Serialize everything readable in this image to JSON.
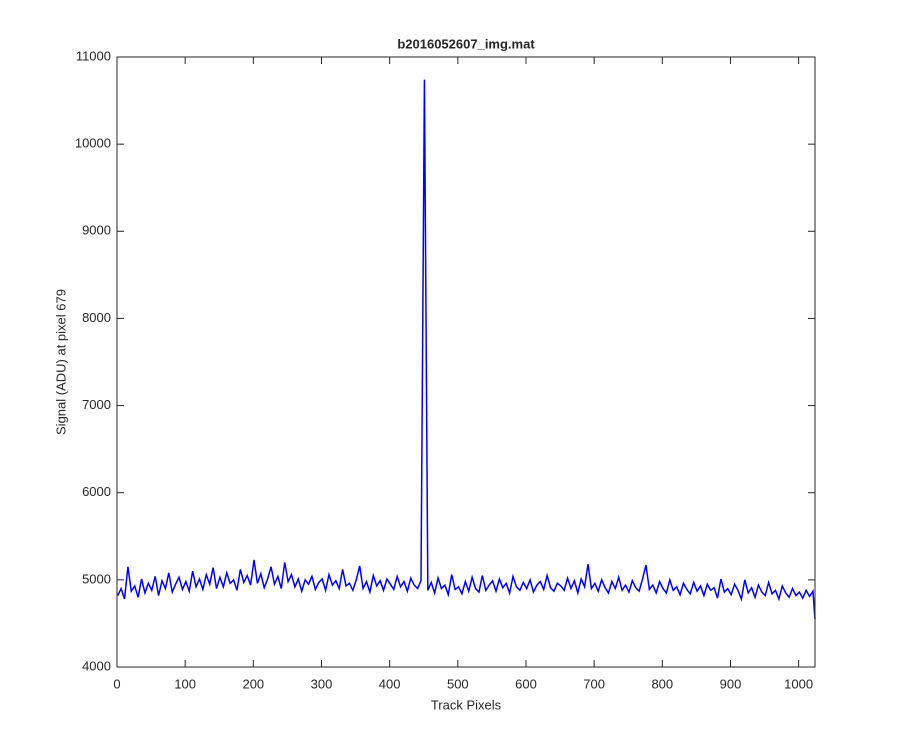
{
  "chart_data": {
    "type": "line",
    "title": "b2016052607_img.mat",
    "x_label": "Track Pixels",
    "y_label": "Signal (ADU) at pixel 679",
    "color": "#0000ff",
    "xlim": [
      0,
      1024
    ],
    "ylim": [
      4000,
      11000
    ],
    "xticks": [
      0,
      100,
      200,
      300,
      400,
      500,
      600,
      700,
      800,
      900,
      1000
    ],
    "yticks": [
      4000,
      5000,
      6000,
      7000,
      8000,
      9000,
      10000,
      11000
    ],
    "x": [
      1,
      6,
      11,
      16,
      21,
      26,
      31,
      36,
      41,
      46,
      51,
      56,
      61,
      66,
      71,
      76,
      81,
      86,
      91,
      96,
      101,
      106,
      111,
      116,
      121,
      126,
      131,
      136,
      141,
      146,
      151,
      156,
      161,
      166,
      171,
      176,
      181,
      186,
      191,
      196,
      201,
      206,
      211,
      216,
      221,
      226,
      231,
      236,
      241,
      246,
      251,
      256,
      261,
      266,
      271,
      276,
      281,
      286,
      291,
      296,
      301,
      306,
      311,
      316,
      321,
      326,
      331,
      336,
      341,
      346,
      351,
      356,
      361,
      366,
      371,
      376,
      381,
      386,
      391,
      396,
      401,
      406,
      411,
      416,
      421,
      426,
      431,
      436,
      441,
      446,
      451,
      456,
      461,
      466,
      471,
      476,
      481,
      486,
      491,
      496,
      501,
      506,
      511,
      516,
      521,
      526,
      531,
      536,
      541,
      546,
      551,
      556,
      561,
      566,
      571,
      576,
      581,
      586,
      591,
      596,
      601,
      606,
      611,
      616,
      621,
      626,
      631,
      636,
      641,
      646,
      651,
      656,
      661,
      666,
      671,
      676,
      681,
      686,
      691,
      696,
      701,
      706,
      711,
      716,
      721,
      726,
      731,
      736,
      741,
      746,
      751,
      756,
      761,
      766,
      771,
      776,
      781,
      786,
      791,
      796,
      801,
      806,
      811,
      816,
      821,
      826,
      831,
      836,
      841,
      846,
      851,
      856,
      861,
      866,
      871,
      876,
      881,
      886,
      891,
      896,
      901,
      906,
      911,
      916,
      921,
      926,
      931,
      936,
      941,
      946,
      951,
      956,
      961,
      966,
      971,
      976,
      981,
      986,
      991,
      996,
      1001,
      1006,
      1011,
      1016,
      1021,
      1024
    ],
    "values": [
      4820,
      4900,
      4780,
      5150,
      4870,
      4930,
      4800,
      5010,
      4850,
      4960,
      4880,
      5040,
      4820,
      4990,
      4900,
      5080,
      4860,
      4950,
      5030,
      4890,
      4980,
      4870,
      5100,
      4920,
      5010,
      4890,
      5060,
      4950,
      5140,
      4900,
      5030,
      4920,
      5080,
      4960,
      5000,
      4880,
      5120,
      4970,
      5050,
      4940,
      5230,
      4960,
      5070,
      4910,
      5010,
      5150,
      4950,
      5040,
      4900,
      5200,
      4980,
      5060,
      4920,
      5010,
      4870,
      5000,
      4950,
      5040,
      4890,
      4970,
      5010,
      4880,
      5060,
      4940,
      4990,
      4900,
      5120,
      4930,
      4960,
      4880,
      5000,
      5160,
      4900,
      4980,
      4860,
      5050,
      4930,
      4990,
      4880,
      5010,
      4950,
      4890,
      5040,
      4920,
      4980,
      4870,
      5020,
      4940,
      4900,
      4990,
      10740,
      4880,
      4970,
      4850,
      5020,
      4900,
      4940,
      4830,
      5060,
      4890,
      4920,
      4840,
      4980,
      4870,
      5030,
      4900,
      4860,
      5050,
      4880,
      4940,
      4990,
      4870,
      5010,
      4910,
      4960,
      4850,
      5040,
      4920,
      4880,
      4970,
      4900,
      5000,
      4860,
      4940,
      4980,
      4890,
      5050,
      4910,
      4870,
      4960,
      4930,
      4880,
      5020,
      4900,
      4990,
      4850,
      5010,
      4920,
      5180,
      4900,
      4960,
      4870,
      5000,
      4910,
      4850,
      4980,
      4900,
      5030,
      4880,
      4940,
      4860,
      4990,
      4910,
      4870,
      5010,
      5170,
      4890,
      4940,
      4850,
      4980,
      4900,
      4850,
      5000,
      4880,
      4920,
      4830,
      4960,
      4890,
      4840,
      4970,
      4870,
      4930,
      4820,
      4950,
      4880,
      4910,
      4790,
      5010,
      4860,
      4900,
      4830,
      4950,
      4880,
      4780,
      5000,
      4850,
      4910,
      4800,
      4940,
      4860,
      4820,
      4970,
      4840,
      4880,
      4780,
      4930,
      4850,
      4800,
      4900,
      4820,
      4860,
      4790,
      4880,
      4810,
      4870,
      4550
    ]
  }
}
